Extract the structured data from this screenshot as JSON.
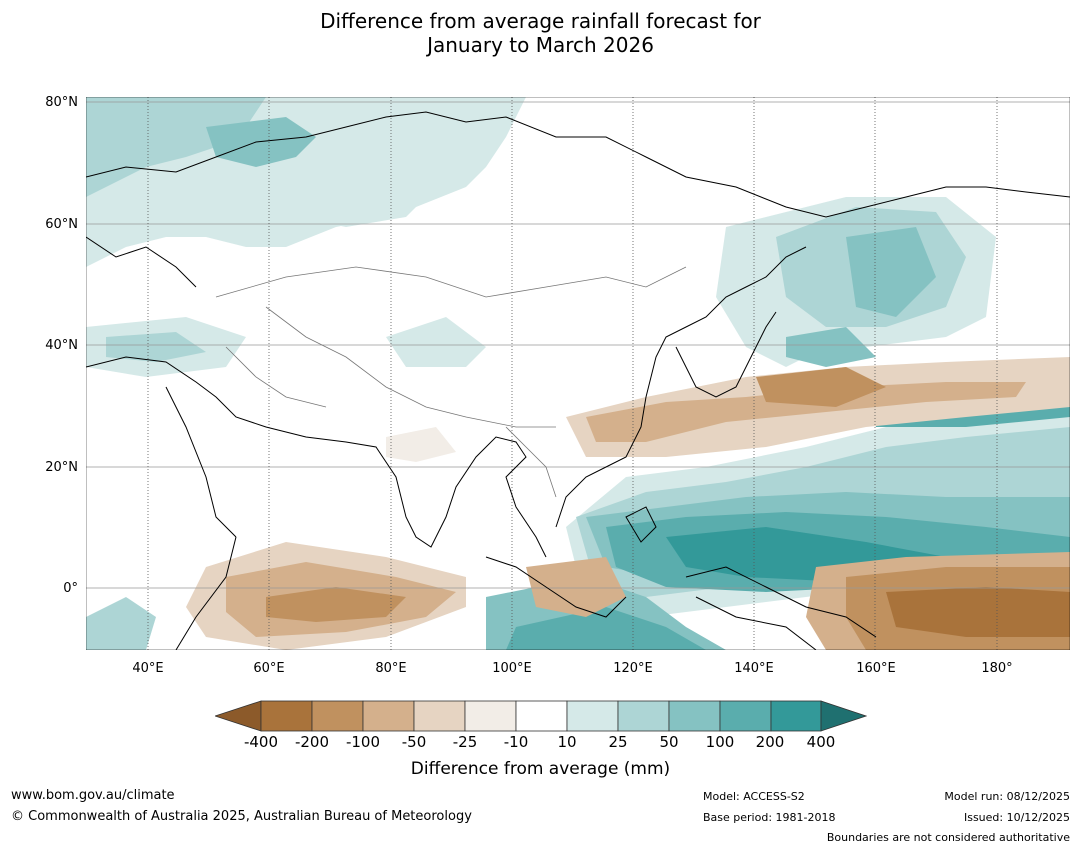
{
  "title_line1": "Difference from average rainfall forecast for",
  "title_line2": "January to March 2026",
  "lat_labels": [
    "80°N",
    "60°N",
    "40°N",
    "20°N",
    "0°"
  ],
  "lon_labels": [
    "40°E",
    "60°E",
    "80°E",
    "100°E",
    "120°E",
    "140°E",
    "160°E",
    "180°"
  ],
  "colorbar": {
    "ticks": [
      "-400",
      "-200",
      "-100",
      "-50",
      "-25",
      "-10",
      "10",
      "25",
      "50",
      "100",
      "200",
      "400"
    ],
    "colors": [
      "#8c5a2a",
      "#a9733b",
      "#c0915f",
      "#d4b08c",
      "#e6d4c2",
      "#f2ede7",
      "#ffffff",
      "#d5e9e8",
      "#add5d5",
      "#85c2c2",
      "#5aadad",
      "#339999",
      "#1f7070"
    ],
    "label": "Difference from average (mm)"
  },
  "footer": {
    "url": "www.bom.gov.au/climate",
    "copyright": "© Commonwealth of Australia 2025, Australian Bureau of Meteorology",
    "model": "Model: ACCESS-S2",
    "base_period": "Base period: 1981-2018",
    "model_run": "Model run: 08/12/2025",
    "issued": "Issued: 10/12/2025",
    "disclaimer": "Boundaries are not considered authoritative"
  }
}
